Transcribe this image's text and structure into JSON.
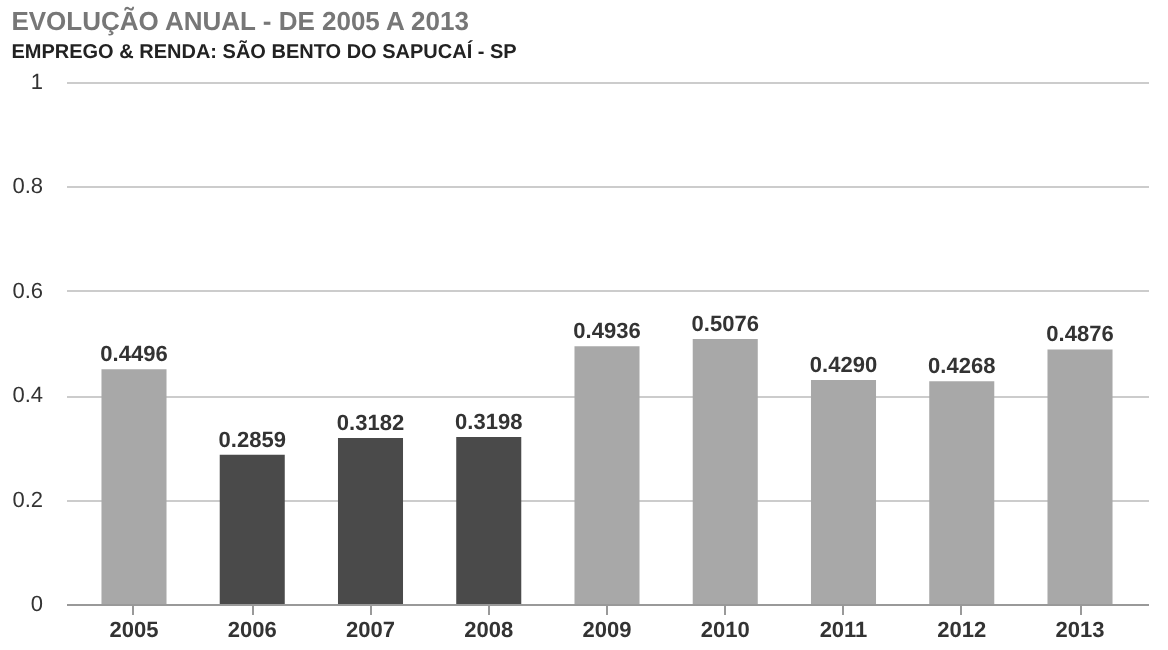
{
  "chart_data": {
    "type": "bar",
    "title": "EVOLUÇÃO ANUAL - DE 2005 A 2013",
    "subtitle": "EMPREGO & RENDA: SÃO BENTO DO SAPUCAÍ - SP",
    "categories": [
      "2005",
      "2006",
      "2007",
      "2008",
      "2009",
      "2010",
      "2011",
      "2012",
      "2013"
    ],
    "values": [
      0.4496,
      0.2859,
      0.3182,
      0.3198,
      0.4936,
      0.5076,
      0.429,
      0.4268,
      0.4876
    ],
    "colors": [
      "#a8a8a8",
      "#4a4a4a",
      "#4a4a4a",
      "#4a4a4a",
      "#a8a8a8",
      "#a8a8a8",
      "#a8a8a8",
      "#a8a8a8",
      "#a8a8a8"
    ],
    "value_labels": [
      "0.4496",
      "0.2859",
      "0.3182",
      "0.3198",
      "0.4936",
      "0.5076",
      "0.4290",
      "0.4268",
      "0.4876"
    ],
    "ylim": [
      0,
      1
    ],
    "yticks": [
      0,
      0.2,
      0.4,
      0.6,
      0.8,
      1
    ],
    "grid": "y"
  }
}
